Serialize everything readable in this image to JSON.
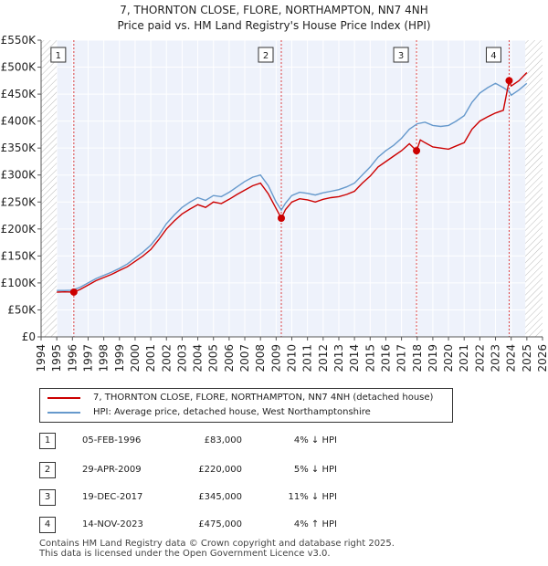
{
  "title_line1": "7, THORNTON CLOSE, FLORE, NORTHAMPTON, NN7 4NH",
  "title_line2": "Price paid vs. HM Land Registry's House Price Index (HPI)",
  "chart_data": {
    "type": "line",
    "xlim": [
      1994,
      2026
    ],
    "ylim": [
      0,
      550000
    ],
    "x_ticks": [
      1994,
      1995,
      1996,
      1997,
      1998,
      1999,
      2000,
      2001,
      2002,
      2003,
      2004,
      2005,
      2006,
      2007,
      2008,
      2009,
      2010,
      2011,
      2012,
      2013,
      2014,
      2015,
      2016,
      2017,
      2018,
      2019,
      2020,
      2021,
      2022,
      2023,
      2024,
      2025,
      2026
    ],
    "y_ticks": [
      0,
      50000,
      100000,
      150000,
      200000,
      250000,
      300000,
      350000,
      400000,
      450000,
      500000,
      550000
    ],
    "y_tick_labels": [
      "£0",
      "£50K",
      "£100K",
      "£150K",
      "£200K",
      "£250K",
      "£300K",
      "£350K",
      "£400K",
      "£450K",
      "£500K",
      "£550K"
    ],
    "hatched_ranges": [
      [
        1994,
        1995.0
      ],
      [
        2024.9,
        2026
      ]
    ],
    "series": [
      {
        "name": "7, THORNTON CLOSE, FLORE, NORTHAMPTON, NN7 4NH (detached house)",
        "color": "#cc0000",
        "x": [
          1995.0,
          1995.5,
          1996.09,
          1996.5,
          1997.0,
          1997.5,
          1998.0,
          1998.5,
          1999.0,
          1999.5,
          2000.0,
          2000.5,
          2001.0,
          2001.5,
          2002.0,
          2002.5,
          2003.0,
          2003.5,
          2004.0,
          2004.5,
          2005.0,
          2005.5,
          2006.0,
          2006.5,
          2007.0,
          2007.5,
          2008.0,
          2008.5,
          2009.0,
          2009.33,
          2009.6,
          2010.0,
          2010.5,
          2011.0,
          2011.5,
          2012.0,
          2012.5,
          2013.0,
          2013.5,
          2014.0,
          2014.5,
          2015.0,
          2015.5,
          2016.0,
          2016.5,
          2017.0,
          2017.5,
          2017.96,
          2018.2,
          2018.5,
          2019.0,
          2019.5,
          2020.0,
          2020.5,
          2021.0,
          2021.5,
          2022.0,
          2022.5,
          2023.0,
          2023.5,
          2023.87,
          2024.0,
          2024.5,
          2025.0
        ],
        "values": [
          83000,
          83500,
          83000,
          88000,
          96000,
          104000,
          110000,
          116000,
          123000,
          130000,
          140000,
          150000,
          162000,
          180000,
          200000,
          215000,
          228000,
          237000,
          245000,
          240000,
          250000,
          247000,
          255000,
          264000,
          272000,
          280000,
          285000,
          265000,
          238000,
          220000,
          236000,
          250000,
          256000,
          254000,
          250000,
          255000,
          258000,
          260000,
          264000,
          270000,
          285000,
          298000,
          315000,
          325000,
          335000,
          345000,
          358000,
          345000,
          365000,
          360000,
          352000,
          350000,
          348000,
          354000,
          360000,
          385000,
          400000,
          408000,
          415000,
          420000,
          475000,
          465000,
          475000,
          490000
        ]
      },
      {
        "name": "HPI: Average price, detached house, West Northamptonshire",
        "color": "#6699cc",
        "x": [
          1995.0,
          1995.5,
          1996.0,
          1996.5,
          1997.0,
          1997.5,
          1998.0,
          1998.5,
          1999.0,
          1999.5,
          2000.0,
          2000.5,
          2001.0,
          2001.5,
          2002.0,
          2002.5,
          2003.0,
          2003.5,
          2004.0,
          2004.5,
          2005.0,
          2005.5,
          2006.0,
          2006.5,
          2007.0,
          2007.5,
          2008.0,
          2008.5,
          2009.0,
          2009.33,
          2009.6,
          2010.0,
          2010.5,
          2011.0,
          2011.5,
          2012.0,
          2012.5,
          2013.0,
          2013.5,
          2014.0,
          2014.5,
          2015.0,
          2015.5,
          2016.0,
          2016.5,
          2017.0,
          2017.5,
          2018.0,
          2018.5,
          2019.0,
          2019.5,
          2020.0,
          2020.5,
          2021.0,
          2021.5,
          2022.0,
          2022.5,
          2023.0,
          2023.5,
          2023.87,
          2024.0,
          2024.5,
          2025.0
        ],
        "values": [
          86000,
          86000,
          86500,
          92000,
          100000,
          108000,
          114000,
          120000,
          127000,
          135000,
          146000,
          157000,
          170000,
          188000,
          210000,
          226000,
          240000,
          250000,
          258000,
          253000,
          262000,
          260000,
          268000,
          278000,
          288000,
          296000,
          300000,
          280000,
          250000,
          235000,
          248000,
          262000,
          268000,
          266000,
          263000,
          267000,
          270000,
          273000,
          278000,
          285000,
          300000,
          315000,
          333000,
          345000,
          355000,
          368000,
          385000,
          395000,
          398000,
          392000,
          390000,
          392000,
          400000,
          410000,
          435000,
          452000,
          462000,
          470000,
          462000,
          455000,
          448000,
          458000,
          470000
        ]
      }
    ],
    "sales": [
      {
        "num": "1",
        "x": 1996.09,
        "value": 83000
      },
      {
        "num": "2",
        "x": 2009.33,
        "value": 220000
      },
      {
        "num": "3",
        "x": 2017.96,
        "value": 345000
      },
      {
        "num": "4",
        "x": 2023.87,
        "value": 475000
      }
    ]
  },
  "legend": {
    "red_label": "7, THORNTON CLOSE, FLORE, NORTHAMPTON, NN7 4NH (detached house)",
    "blue_label": "HPI: Average price, detached house, West Northamptonshire"
  },
  "table": [
    {
      "num": "1",
      "date": "05-FEB-1996",
      "price": "£83,000",
      "hpi": "4% ↓ HPI"
    },
    {
      "num": "2",
      "date": "29-APR-2009",
      "price": "£220,000",
      "hpi": "5% ↓ HPI"
    },
    {
      "num": "3",
      "date": "19-DEC-2017",
      "price": "£345,000",
      "hpi": "11% ↓ HPI"
    },
    {
      "num": "4",
      "date": "14-NOV-2023",
      "price": "£475,000",
      "hpi": "4% ↑ HPI"
    }
  ],
  "footer": {
    "line1": "Contains HM Land Registry data © Crown copyright and database right 2025.",
    "line2": "This data is licensed under the Open Government Licence v3.0."
  }
}
